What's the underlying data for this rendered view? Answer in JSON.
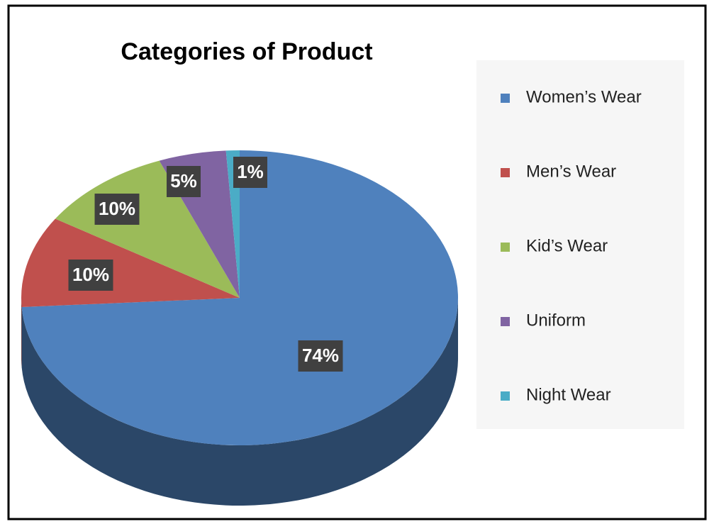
{
  "chart_data": {
    "type": "pie",
    "title": "Categories of Product",
    "categories": [
      "Women’s Wear",
      "Men’s Wear",
      "Kid’s Wear",
      "Uniform",
      "Night Wear"
    ],
    "values": [
      74,
      10,
      10,
      5,
      1
    ],
    "value_labels": [
      "74%",
      "10%",
      "10%",
      "5%",
      "1%"
    ],
    "colors": [
      "#4f81bd",
      "#c0504d",
      "#9bbb59",
      "#8064a2",
      "#4bacc6"
    ],
    "legend": "right"
  }
}
